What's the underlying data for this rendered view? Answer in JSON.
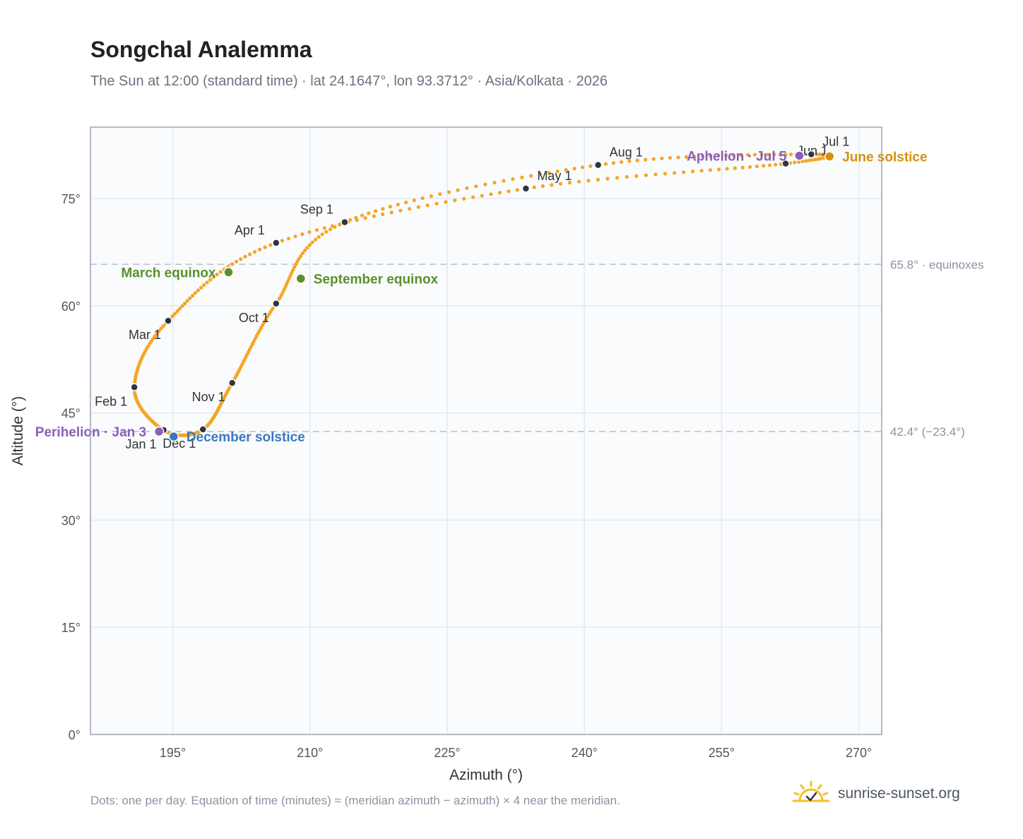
{
  "header": {
    "title": "Songchal Analemma",
    "subtitle": "The Sun at 12:00 (standard time) · lat 24.1647°, lon 93.3712° · Asia/Kolkata · 2026"
  },
  "footer": {
    "note": "Dots: one per day. Equation of time (minutes) ≈ (meridian azimuth − azimuth) × 4 near the meridian.",
    "brand": "sunrise-sunset.org",
    "brand_icon": "sun-check-icon"
  },
  "colors": {
    "curve": "#f5a623",
    "month_marker": "#2d3540",
    "equinox": "#5b8f2d",
    "june_solstice": "#d4920a",
    "december_solstice": "#3a78c0",
    "apsis": "#8a5fb8",
    "reference_line": "#b8c0ca",
    "plot_background": "#f9fbfd",
    "grid": "#e5e9ef",
    "frame": "#9aa4b2"
  },
  "chart_data": {
    "type": "scatter",
    "xlabel": "Azimuth (°)",
    "ylabel": "Altitude (°)",
    "xlim": [
      186,
      272.5
    ],
    "ylim": [
      0,
      85
    ],
    "x_ticks": [
      {
        "value": 195,
        "label": "195°"
      },
      {
        "value": 210,
        "label": "210°"
      },
      {
        "value": 225,
        "label": "225°"
      },
      {
        "value": 240,
        "label": "240°"
      },
      {
        "value": 255,
        "label": "255°"
      },
      {
        "value": 270,
        "label": "270°"
      }
    ],
    "y_ticks": [
      {
        "value": 0,
        "label": "0°"
      },
      {
        "value": 15,
        "label": "15°"
      },
      {
        "value": 30,
        "label": "30°"
      },
      {
        "value": 45,
        "label": "45°"
      },
      {
        "value": 60,
        "label": "60°"
      },
      {
        "value": 75,
        "label": "75°"
      }
    ],
    "grid": true,
    "reference_lines": [
      {
        "y": 65.8,
        "label": "65.8° · equinoxes"
      },
      {
        "y": 42.4,
        "label": "42.4° (−23.4°)"
      }
    ],
    "month_markers": [
      {
        "label": "Jan 1",
        "az": 194.0,
        "alt": 42.6,
        "label_pos": "below-left"
      },
      {
        "label": "Feb 1",
        "az": 190.8,
        "alt": 48.6,
        "label_pos": "below-left"
      },
      {
        "label": "Mar 1",
        "az": 194.5,
        "alt": 57.9,
        "label_pos": "below-left"
      },
      {
        "label": "Apr 1",
        "az": 206.3,
        "alt": 68.8,
        "label_pos": "above-left"
      },
      {
        "label": "May 1",
        "az": 233.6,
        "alt": 76.4,
        "label_pos": "above-right"
      },
      {
        "label": "Jun 1",
        "az": 262.0,
        "alt": 79.9,
        "label_pos": "above-right"
      },
      {
        "label": "Jul 1",
        "az": 264.8,
        "alt": 81.2,
        "label_pos": "above-right"
      },
      {
        "label": "Aug 1",
        "az": 241.5,
        "alt": 79.7,
        "label_pos": "above-right"
      },
      {
        "label": "Sep 1",
        "az": 213.8,
        "alt": 71.7,
        "label_pos": "above-left"
      },
      {
        "label": "Oct 1",
        "az": 206.3,
        "alt": 60.3,
        "label_pos": "below-left"
      },
      {
        "label": "Nov 1",
        "az": 201.5,
        "alt": 49.2,
        "label_pos": "below-left"
      },
      {
        "label": "Dec 1",
        "az": 198.3,
        "alt": 42.7,
        "label_pos": "below-left"
      }
    ],
    "events": [
      {
        "label": "March equinox",
        "az": 201.1,
        "alt": 64.7,
        "color": "#5b8f2d",
        "label_pos": "left"
      },
      {
        "label": "September equinox",
        "az": 209.0,
        "alt": 63.8,
        "color": "#5b8f2d",
        "label_pos": "right"
      },
      {
        "label": "June solstice",
        "az": 266.8,
        "alt": 80.9,
        "color": "#d4920a",
        "label_pos": "right"
      },
      {
        "label": "December solstice",
        "az": 195.1,
        "alt": 41.7,
        "color": "#3a78c0",
        "label_pos": "right"
      },
      {
        "label": "Perihelion · Jan 3",
        "az": 193.5,
        "alt": 42.4,
        "color": "#8a5fb8",
        "label_pos": "left"
      },
      {
        "label": "Aphelion · Jul 5",
        "az": 263.5,
        "alt": 81.0,
        "color": "#8a5fb8",
        "label_pos": "left"
      }
    ]
  }
}
